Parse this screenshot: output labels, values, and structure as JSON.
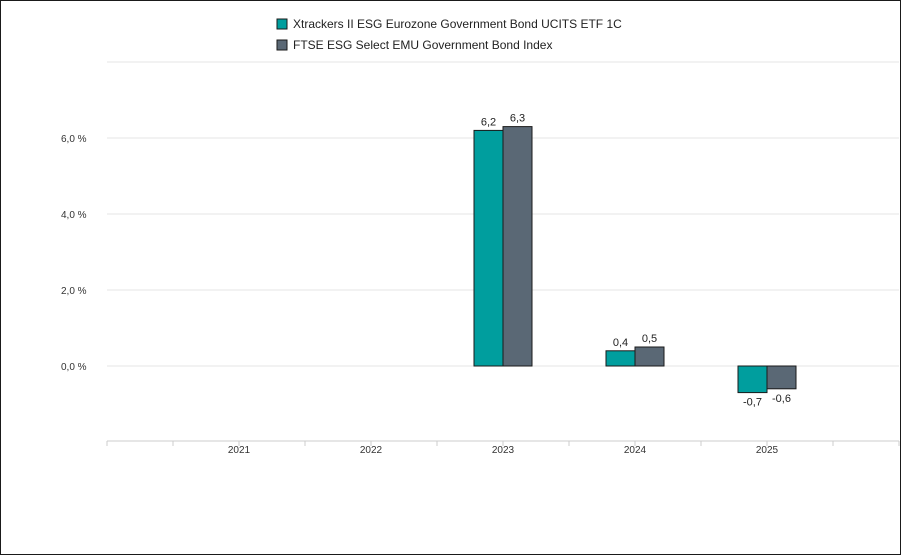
{
  "chart_data": {
    "type": "bar",
    "categories": [
      "2021",
      "2022",
      "2023",
      "2024",
      "2025"
    ],
    "series": [
      {
        "name": "Xtrackers II ESG Eurozone Government Bond UCITS ETF 1C",
        "color": "#009e9e",
        "values": [
          null,
          null,
          6.2,
          0.4,
          -0.7
        ],
        "labels": [
          "",
          "",
          "6,2",
          "0,4",
          "-0,7"
        ]
      },
      {
        "name": "FTSE ESG Select EMU Government Bond Index",
        "color": "#5a6875",
        "values": [
          null,
          null,
          6.3,
          0.5,
          -0.6
        ],
        "labels": [
          "",
          "",
          "6,3",
          "0,5",
          "-0,6"
        ]
      }
    ],
    "yticks": [
      {
        "value": 0,
        "label": "0,0 %"
      },
      {
        "value": 2,
        "label": "2,0 %"
      },
      {
        "value": 4,
        "label": "4,0 %"
      },
      {
        "value": 6,
        "label": "6,0 %"
      }
    ],
    "ylim": [
      -2,
      8
    ],
    "grid": true,
    "legend": "top-center"
  }
}
